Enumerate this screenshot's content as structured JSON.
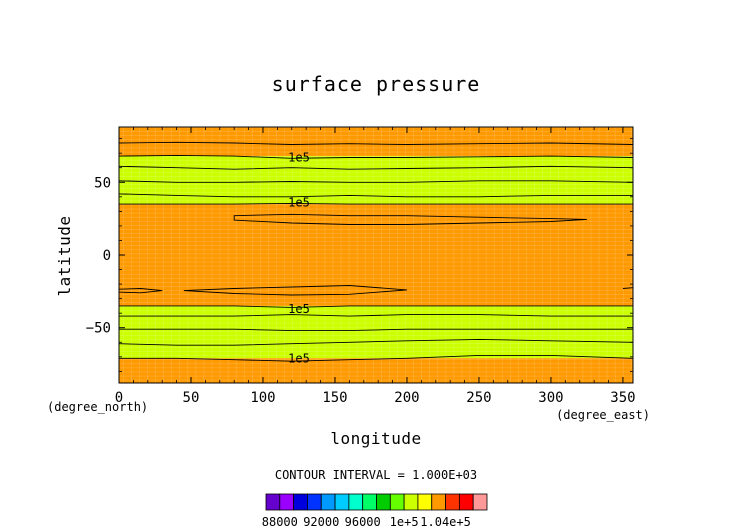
{
  "chart_data": {
    "type": "contour",
    "title": "surface pressure",
    "xlabel": "longitude",
    "ylabel": "latitude",
    "x_unit": "(degree_east)",
    "y_unit": "(degree_north)",
    "xlim": [
      0,
      357
    ],
    "ylim": [
      -88,
      88
    ],
    "xticks": [
      0,
      50,
      100,
      150,
      200,
      250,
      300,
      350
    ],
    "yticks": [
      50,
      0,
      -50
    ],
    "ytick_labels": [
      "50",
      "0",
      "−50"
    ],
    "grid": true,
    "contour_interval_text": "CONTOUR INTERVAL = 1.000E+03",
    "bands": [
      {
        "lat_min": 68,
        "lat_max": 88,
        "color": "#ff9900",
        "range": "1e5–1.01e5"
      },
      {
        "lat_min": 35,
        "lat_max": 68,
        "color": "#ccff00",
        "range": "9.9e4–1e5"
      },
      {
        "lat_min": -35,
        "lat_max": 35,
        "color": "#ff9900",
        "range": "1e5–1.01e5"
      },
      {
        "lat_min": -71,
        "lat_max": -35,
        "color": "#ccff00",
        "range": "9.9e4–1e5"
      },
      {
        "lat_min": -88,
        "lat_max": -71,
        "color": "#ff9900",
        "range": "1e5–1.01e5"
      }
    ],
    "contour_labels": [
      {
        "text": "1e5",
        "lon": 125,
        "lat": 67
      },
      {
        "text": "1e5",
        "lon": 125,
        "lat": 36
      },
      {
        "text": "1e5",
        "lon": 125,
        "lat": -37
      },
      {
        "text": "1e5",
        "lon": 125,
        "lat": -71
      }
    ],
    "contours": [
      {
        "name": "c1",
        "points": [
          [
            0,
            77
          ],
          [
            40,
            77.5
          ],
          [
            80,
            77
          ],
          [
            120,
            76
          ],
          [
            160,
            76.5
          ],
          [
            200,
            76
          ],
          [
            250,
            76.5
          ],
          [
            300,
            77
          ],
          [
            357,
            76
          ]
        ]
      },
      {
        "name": "c2",
        "points": [
          [
            0,
            68
          ],
          [
            40,
            68.5
          ],
          [
            80,
            68
          ],
          [
            120,
            66.5
          ],
          [
            160,
            67
          ],
          [
            200,
            67
          ],
          [
            250,
            67.5
          ],
          [
            300,
            68
          ],
          [
            357,
            67
          ]
        ]
      },
      {
        "name": "c3",
        "points": [
          [
            0,
            61
          ],
          [
            40,
            60
          ],
          [
            80,
            59
          ],
          [
            120,
            60
          ],
          [
            160,
            59
          ],
          [
            200,
            59.5
          ],
          [
            250,
            60
          ],
          [
            300,
            61
          ],
          [
            357,
            60
          ]
        ]
      },
      {
        "name": "c4",
        "points": [
          [
            0,
            51
          ],
          [
            40,
            50
          ],
          [
            80,
            50
          ],
          [
            120,
            50.5
          ],
          [
            160,
            50
          ],
          [
            200,
            50
          ],
          [
            250,
            51
          ],
          [
            300,
            51
          ],
          [
            357,
            50
          ]
        ]
      },
      {
        "name": "c5",
        "points": [
          [
            0,
            42
          ],
          [
            40,
            41
          ],
          [
            80,
            40
          ],
          [
            120,
            40
          ],
          [
            160,
            41
          ],
          [
            200,
            40
          ],
          [
            250,
            40
          ],
          [
            300,
            41
          ],
          [
            357,
            41
          ]
        ]
      },
      {
        "name": "c6",
        "points": [
          [
            0,
            35
          ],
          [
            40,
            35
          ],
          [
            80,
            35
          ],
          [
            120,
            35.5
          ],
          [
            160,
            35
          ],
          [
            200,
            35
          ],
          [
            250,
            35
          ],
          [
            300,
            35
          ],
          [
            357,
            35
          ]
        ]
      },
      {
        "name": "c7",
        "points": [
          [
            0,
            -35
          ],
          [
            40,
            -35
          ],
          [
            80,
            -35
          ],
          [
            120,
            -36
          ],
          [
            160,
            -35
          ],
          [
            200,
            -35
          ],
          [
            250,
            -35
          ],
          [
            300,
            -35
          ],
          [
            357,
            -35
          ]
        ]
      },
      {
        "name": "c8",
        "points": [
          [
            0,
            -42
          ],
          [
            40,
            -42
          ],
          [
            80,
            -42
          ],
          [
            120,
            -41
          ],
          [
            160,
            -42
          ],
          [
            200,
            -41
          ],
          [
            250,
            -41
          ],
          [
            300,
            -42
          ],
          [
            357,
            -42
          ]
        ]
      },
      {
        "name": "c9",
        "points": [
          [
            0,
            -51
          ],
          [
            40,
            -51
          ],
          [
            80,
            -51
          ],
          [
            120,
            -52
          ],
          [
            160,
            -52
          ],
          [
            200,
            -51
          ],
          [
            250,
            -51
          ],
          [
            300,
            -51
          ],
          [
            357,
            -51
          ]
        ]
      },
      {
        "name": "c10",
        "points": [
          [
            0,
            -61
          ],
          [
            40,
            -62
          ],
          [
            80,
            -62
          ],
          [
            120,
            -61
          ],
          [
            160,
            -60
          ],
          [
            200,
            -59
          ],
          [
            250,
            -58
          ],
          [
            300,
            -59
          ],
          [
            357,
            -60
          ]
        ]
      },
      {
        "name": "c11",
        "points": [
          [
            0,
            -71
          ],
          [
            40,
            -71
          ],
          [
            80,
            -72
          ],
          [
            120,
            -73
          ],
          [
            160,
            -72
          ],
          [
            200,
            -71
          ],
          [
            250,
            -69
          ],
          [
            300,
            -69
          ],
          [
            357,
            -71
          ]
        ]
      },
      {
        "name": "loop-north",
        "closed": true,
        "points": [
          [
            80,
            27
          ],
          [
            120,
            28
          ],
          [
            160,
            27
          ],
          [
            200,
            27
          ],
          [
            250,
            26
          ],
          [
            300,
            25
          ],
          [
            325,
            24.5
          ],
          [
            300,
            23
          ],
          [
            250,
            22
          ],
          [
            200,
            21
          ],
          [
            160,
            21
          ],
          [
            120,
            22
          ],
          [
            80,
            24
          ]
        ]
      },
      {
        "name": "loop-south-main",
        "closed": true,
        "points": [
          [
            45,
            -24.5
          ],
          [
            80,
            -23
          ],
          [
            120,
            -22
          ],
          [
            160,
            -21
          ],
          [
            200,
            -24
          ],
          [
            160,
            -27
          ],
          [
            120,
            -27.5
          ],
          [
            80,
            -26.5
          ]
        ]
      },
      {
        "name": "loop-south-left",
        "closed": true,
        "points": [
          [
            0,
            -23.5
          ],
          [
            15,
            -23
          ],
          [
            30,
            -24.5
          ],
          [
            15,
            -26
          ],
          [
            0,
            -25.5
          ]
        ]
      },
      {
        "name": "loop-south-right",
        "points": [
          [
            350,
            -23
          ],
          [
            357,
            -22.5
          ]
        ]
      }
    ],
    "colorbar": {
      "colors": [
        "#6600cc",
        "#9900ff",
        "#0000dd",
        "#0033ff",
        "#0099ff",
        "#00ccff",
        "#00ffcc",
        "#00ff66",
        "#00cc00",
        "#66ff00",
        "#ccff00",
        "#ffff00",
        "#ff9900",
        "#ff3300",
        "#ff0000",
        "#ff9999"
      ],
      "labels": [
        {
          "text": "88000",
          "pos": 1
        },
        {
          "text": "92000",
          "pos": 4
        },
        {
          "text": "96000",
          "pos": 7
        },
        {
          "text": "1e+5",
          "pos": 10
        },
        {
          "text": "1.04e+5",
          "pos": 13
        }
      ]
    }
  }
}
